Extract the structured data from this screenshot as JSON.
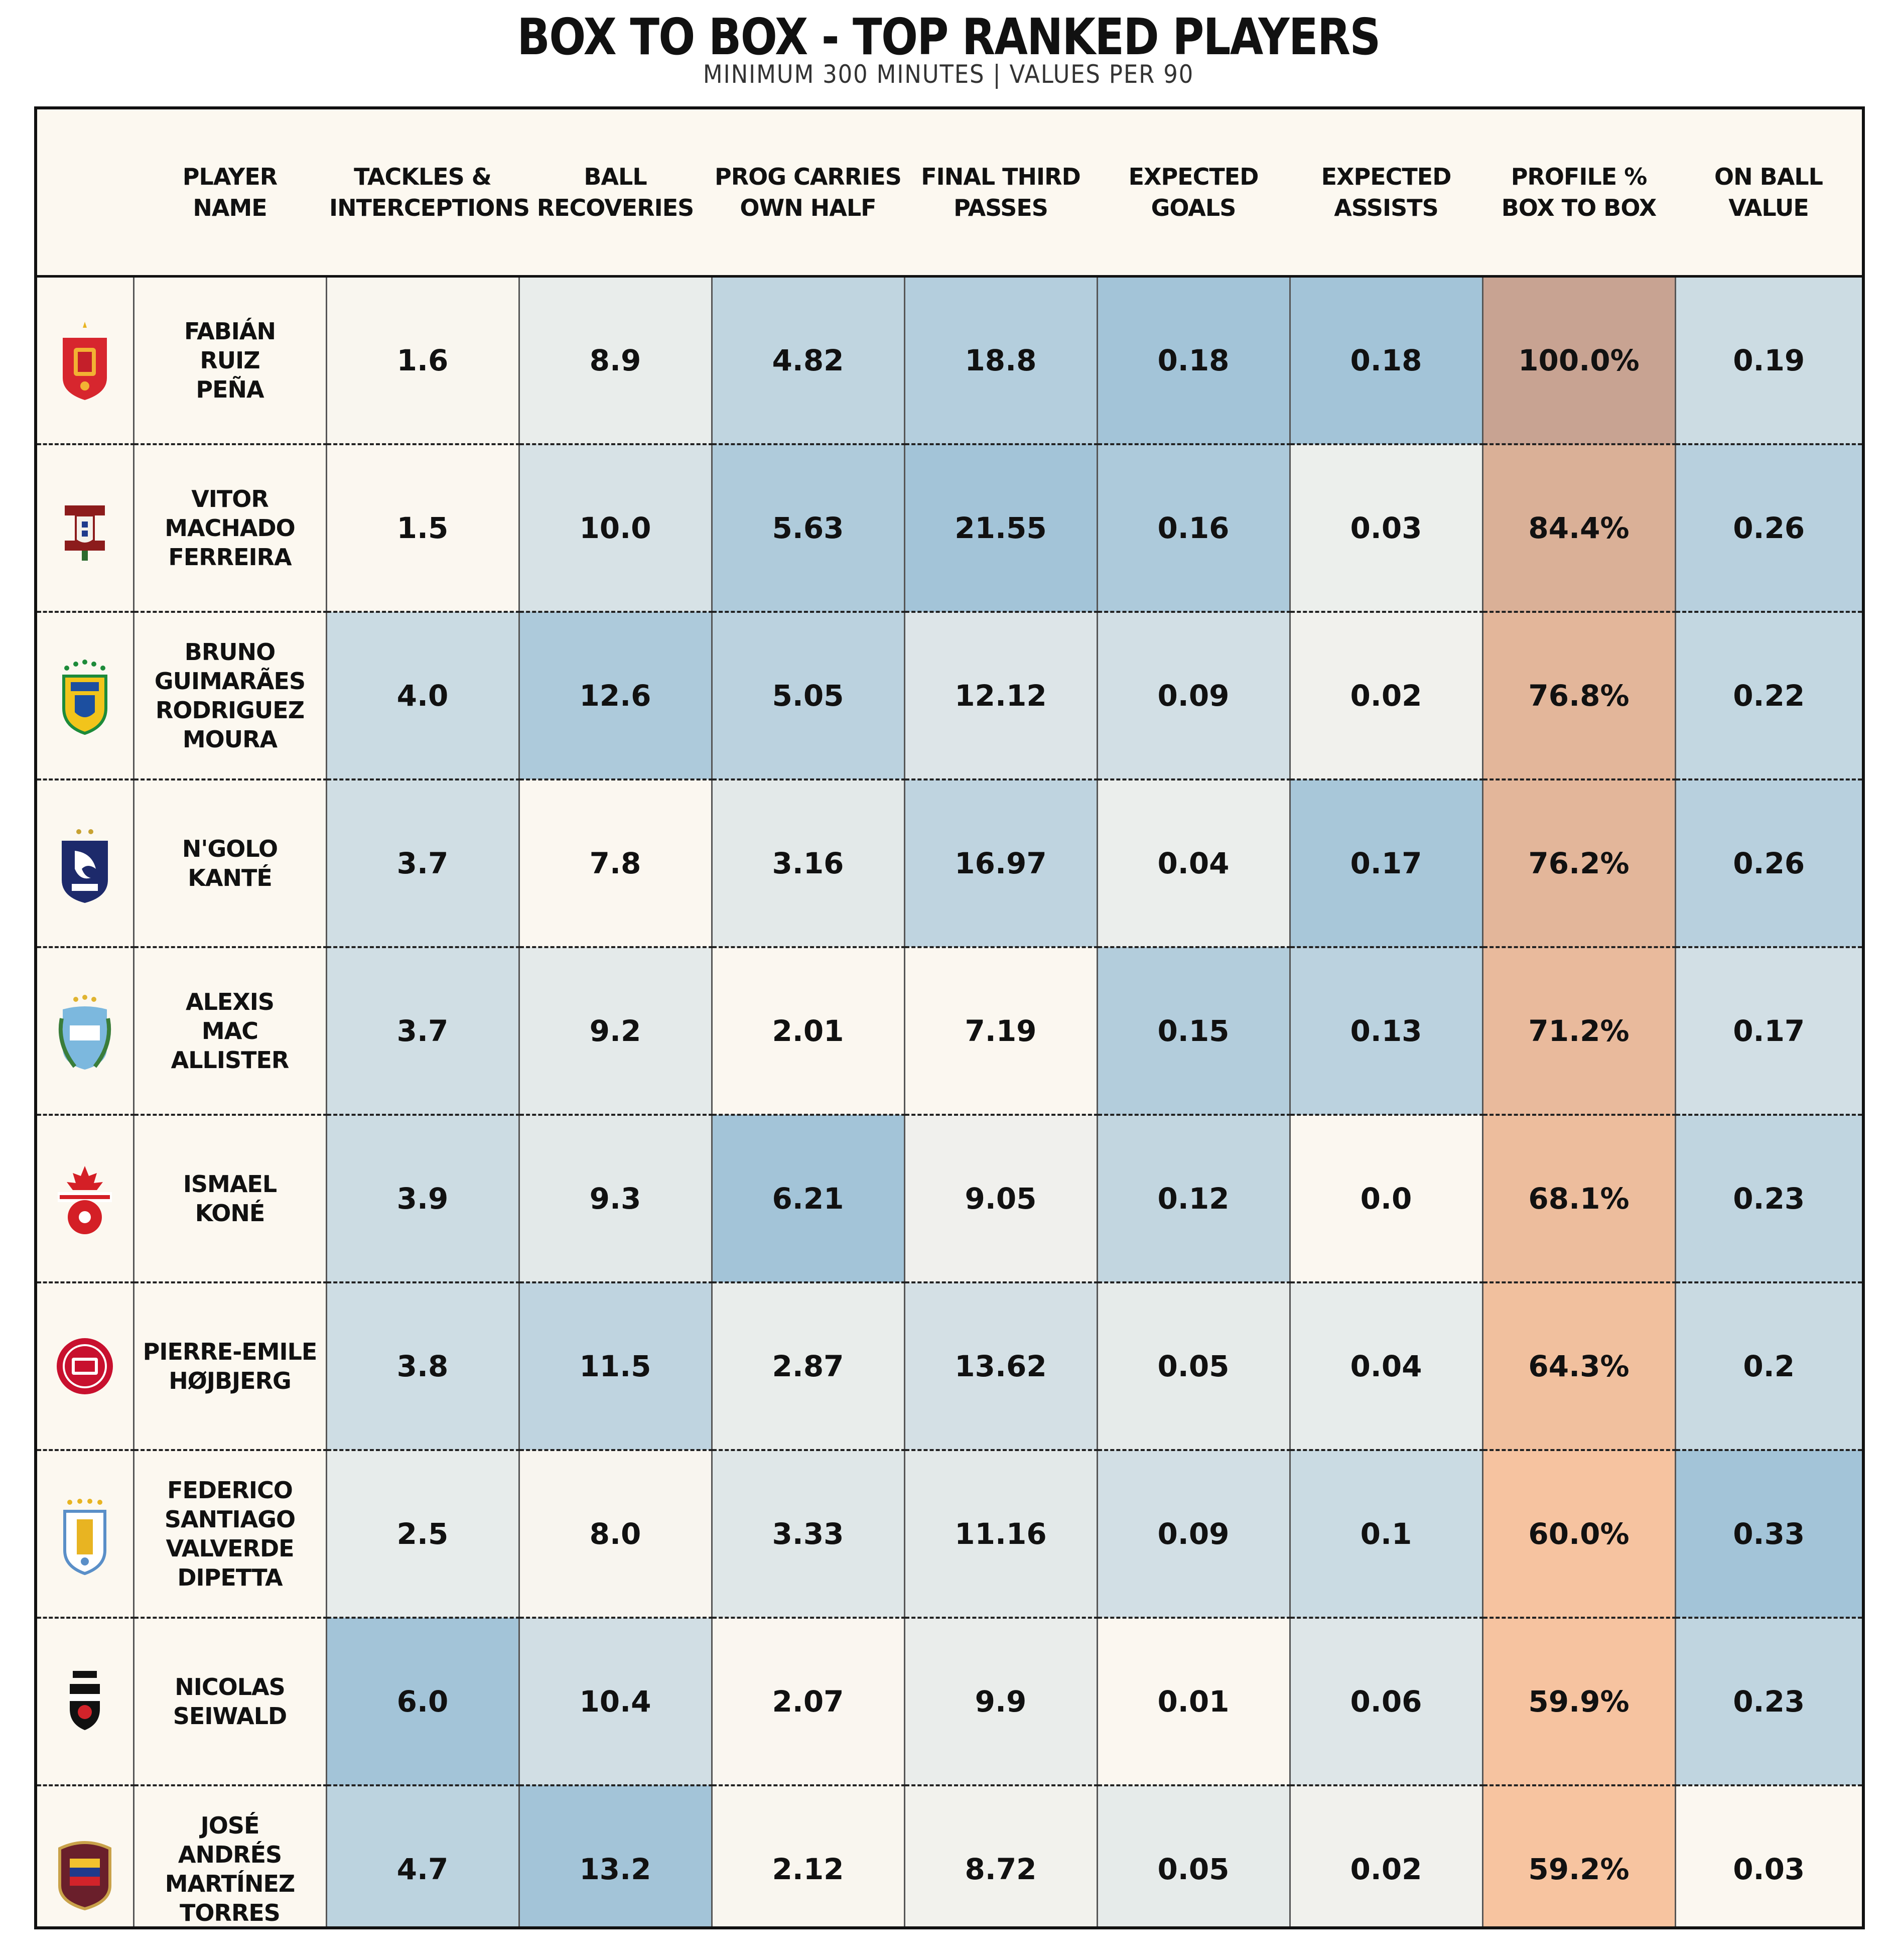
{
  "title": "BOX TO BOX - TOP RANKED PLAYERS",
  "subtitle": "MINIMUM 300 MINUTES | VALUES PER 90",
  "colors": {
    "background": "#fcf8f0",
    "low": "#fbf7f0",
    "high_blue": "#a3c4d8",
    "profile_low": "#f7c4a0",
    "profile_high": "#c8a392"
  },
  "chart_data": {
    "type": "table",
    "columns": [
      "PLAYER\nNAME",
      "TACKLES &\nINTERCEPTIONS",
      "BALL\nRECOVERIES",
      "PROG CARRIES\nOWN HALF",
      "FINAL THIRD\nPASSES",
      "EXPECTED\nGOALS",
      "EXPECTED\nASSISTS",
      "PROFILE %\nBOX TO BOX",
      "ON BALL\nVALUE"
    ],
    "rows": [
      {
        "badge": "spain-crest-icon",
        "name": "FABIÁN\nRUIZ\nPEÑA",
        "values": [
          "1.6",
          "8.9",
          "4.82",
          "18.8",
          "0.18",
          "0.18",
          "100.0%",
          "0.19"
        ]
      },
      {
        "badge": "portugal-crest-icon",
        "name": "VITOR\nMACHADO\nFERREIRA",
        "values": [
          "1.5",
          "10.0",
          "5.63",
          "21.55",
          "0.16",
          "0.03",
          "84.4%",
          "0.26"
        ]
      },
      {
        "badge": "brazil-crest-icon",
        "name": "BRUNO\nGUIMARÃES\nRODRIGUEZ\nMOURA",
        "values": [
          "4.0",
          "12.6",
          "5.05",
          "12.12",
          "0.09",
          "0.02",
          "76.8%",
          "0.22"
        ]
      },
      {
        "badge": "france-crest-icon",
        "name": "N'GOLO\nKANTÉ",
        "values": [
          "3.7",
          "7.8",
          "3.16",
          "16.97",
          "0.04",
          "0.17",
          "76.2%",
          "0.26"
        ]
      },
      {
        "badge": "argentina-crest-icon",
        "name": "ALEXIS\nMAC\nALLISTER",
        "values": [
          "3.7",
          "9.2",
          "2.01",
          "7.19",
          "0.15",
          "0.13",
          "71.2%",
          "0.17"
        ]
      },
      {
        "badge": "canada-crest-icon",
        "name": "ISMAEL\nKONÉ",
        "values": [
          "3.9",
          "9.3",
          "6.21",
          "9.05",
          "0.12",
          "0.0",
          "68.1%",
          "0.23"
        ]
      },
      {
        "badge": "denmark-crest-icon",
        "name": "PIERRE-EMILE\nHØJBJERG",
        "values": [
          "3.8",
          "11.5",
          "2.87",
          "13.62",
          "0.05",
          "0.04",
          "64.3%",
          "0.2"
        ]
      },
      {
        "badge": "uruguay-crest-icon",
        "name": "FEDERICO\nSANTIAGO\nVALVERDE\nDIPETTA",
        "values": [
          "2.5",
          "8.0",
          "3.33",
          "11.16",
          "0.09",
          "0.1",
          "60.0%",
          "0.33"
        ]
      },
      {
        "badge": "austria-crest-icon",
        "name": "NICOLAS\nSEIWALD",
        "values": [
          "6.0",
          "10.4",
          "2.07",
          "9.9",
          "0.01",
          "0.06",
          "59.9%",
          "0.23"
        ]
      },
      {
        "badge": "venezuela-crest-icon",
        "name": "JOSÉ\nANDRÉS\nMARTÍNEZ\nTORRES",
        "values": [
          "4.7",
          "13.2",
          "2.12",
          "8.72",
          "0.05",
          "0.02",
          "59.2%",
          "0.03"
        ]
      }
    ]
  }
}
